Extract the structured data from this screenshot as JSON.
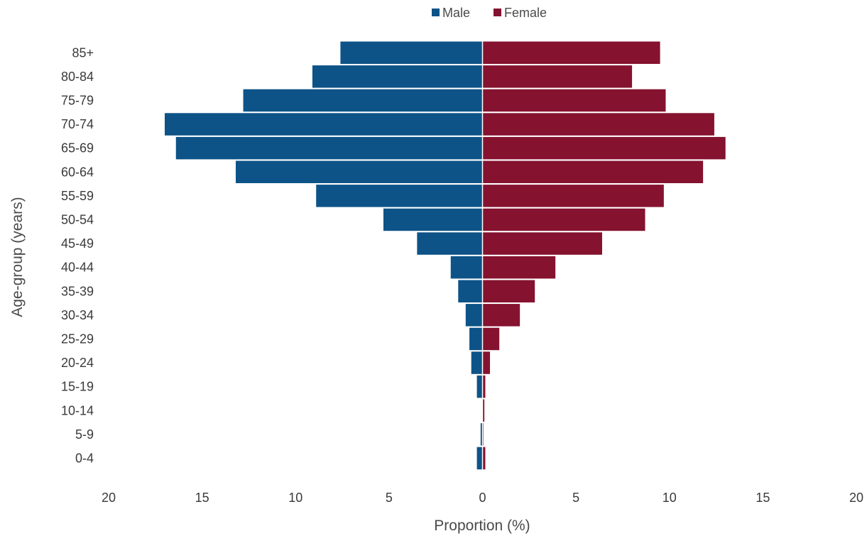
{
  "chart_data": {
    "type": "bar",
    "orientation": "horizontal",
    "subtype": "population-pyramid",
    "title": "",
    "xlabel": "Proportion (%)",
    "ylabel": "Age-group (years)",
    "xlim": [
      -20,
      20
    ],
    "xticks": [
      -20,
      -15,
      -10,
      -5,
      0,
      5,
      10,
      15,
      20
    ],
    "xtick_labels": [
      "20",
      "15",
      "10",
      "5",
      "0",
      "5",
      "10",
      "15",
      "20"
    ],
    "grid": false,
    "legend_position": "top-center",
    "categories": [
      "0-4",
      "5-9",
      "10-14",
      "15-19",
      "20-24",
      "25-29",
      "30-34",
      "35-39",
      "40-44",
      "45-49",
      "50-54",
      "55-59",
      "60-64",
      "65-69",
      "70-74",
      "75-79",
      "80-84",
      "85+"
    ],
    "series": [
      {
        "name": "Male",
        "color": "#0d5387",
        "side": "left",
        "values": [
          0.3,
          0.1,
          0.0,
          0.3,
          0.6,
          0.7,
          0.9,
          1.3,
          1.7,
          3.5,
          5.3,
          8.9,
          13.2,
          16.4,
          17.0,
          12.8,
          9.1,
          7.6
        ]
      },
      {
        "name": "Female",
        "color": "#85122f",
        "side": "right",
        "values": [
          0.15,
          0.05,
          0.1,
          0.15,
          0.4,
          0.9,
          2.0,
          2.8,
          3.9,
          6.4,
          8.7,
          9.7,
          11.8,
          13.0,
          12.4,
          9.8,
          8.0,
          9.5
        ]
      }
    ]
  }
}
